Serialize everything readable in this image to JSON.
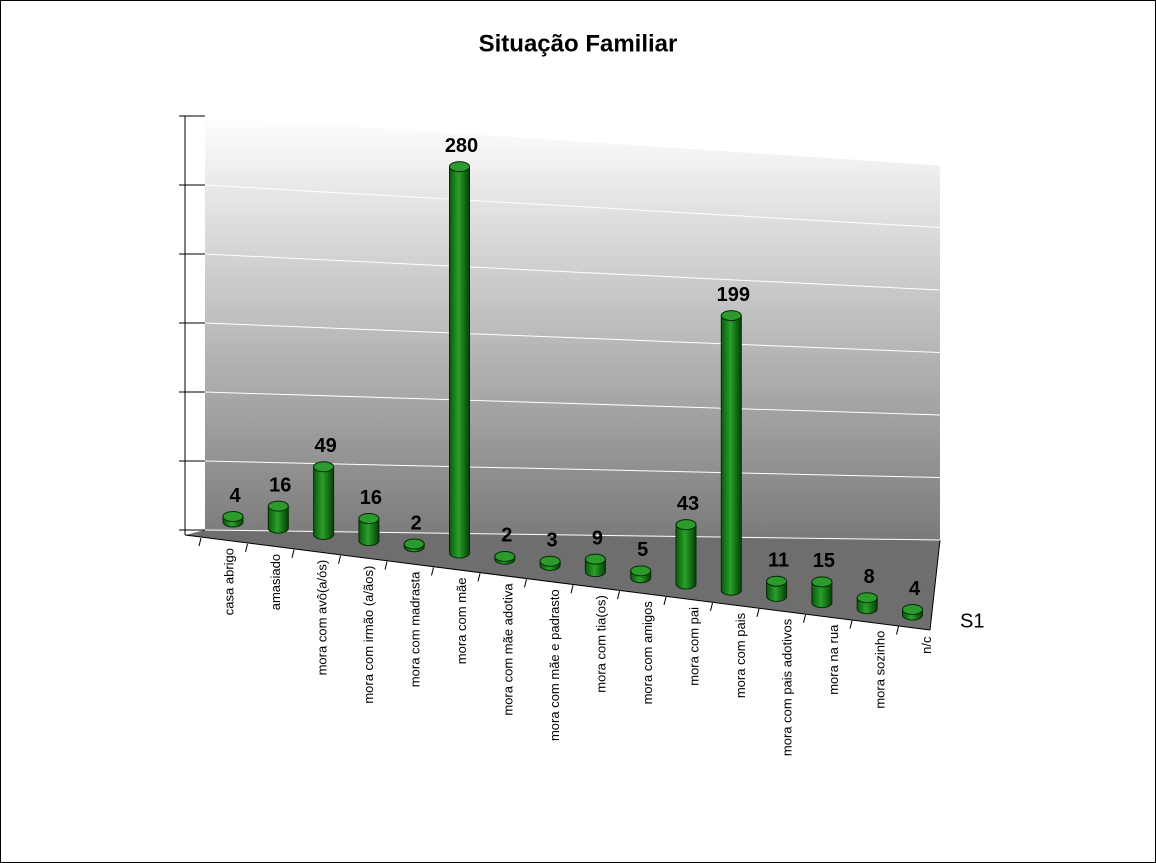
{
  "chart_data": {
    "type": "bar",
    "title": "Situação Familiar",
    "categories": [
      "casa abrigo",
      "amasiado",
      "mora com avô(a/ós)",
      "mora com irmão (a/ãos)",
      "mora com madrasta",
      "mora com mãe",
      "mora com mãe adotiva",
      "mora com mãe e padrasto",
      "mora com tia(os)",
      "mora com amigos",
      "mora com pai",
      "mora com pais",
      "mora com pais adotivos",
      "mora na rua",
      "mora sozinho",
      "n/c"
    ],
    "series": [
      {
        "name": "S1",
        "color": "#1a8a1a",
        "values": [
          4,
          16,
          49,
          16,
          2,
          280,
          2,
          3,
          9,
          5,
          43,
          199,
          11,
          15,
          8,
          4
        ]
      }
    ],
    "ylim": [
      0,
      300
    ],
    "yticks": [
      0,
      50,
      100,
      150,
      200,
      250,
      300
    ],
    "grid": true
  }
}
